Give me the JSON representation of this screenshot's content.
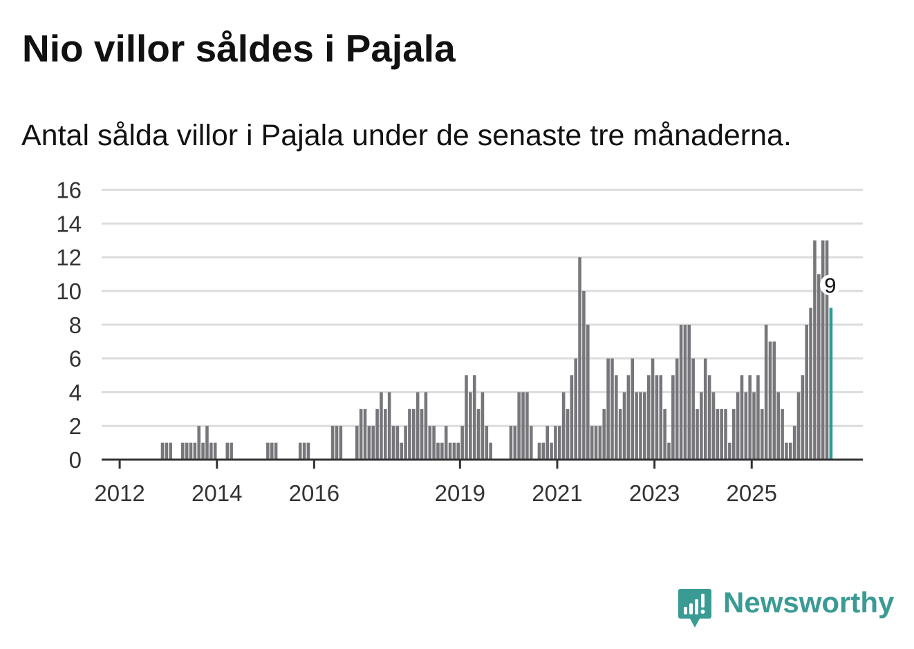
{
  "title": "Nio villor såldes i Pajala",
  "subtitle": "Antal sålda villor i Pajala under de senaste tre månaderna.",
  "brand": {
    "name": "Newsworthy",
    "icon": "newsworthy-logo-icon",
    "color": "#3a9b94"
  },
  "colors": {
    "bar": "#77767a",
    "highlight": "#2a9d96",
    "grid": "#dcdcdc",
    "axis": "#333333"
  },
  "chart_data": {
    "type": "bar",
    "title": "Nio villor såldes i Pajala",
    "xlabel": "",
    "ylabel": "",
    "ylim": [
      0,
      16
    ],
    "yticks": [
      0,
      2,
      4,
      6,
      8,
      10,
      12,
      14,
      16
    ],
    "x_start": {
      "year": 2011,
      "month": 10
    },
    "year_ticks": [
      {
        "label": "2012",
        "year": 2012
      },
      {
        "label": "2014",
        "year": 2014
      },
      {
        "label": "2016",
        "year": 2016
      },
      {
        "label": "2019",
        "year": 2019
      },
      {
        "label": "2021",
        "year": 2021
      },
      {
        "label": "2023",
        "year": 2023
      },
      {
        "label": "2025",
        "year": 2025
      }
    ],
    "values": [
      0,
      0,
      0,
      0,
      0,
      0,
      0,
      0,
      0,
      0,
      0,
      0,
      0,
      1,
      1,
      1,
      0,
      0,
      1,
      1,
      1,
      1,
      2,
      1,
      2,
      1,
      1,
      0,
      0,
      1,
      1,
      0,
      0,
      0,
      0,
      0,
      0,
      0,
      0,
      1,
      1,
      1,
      0,
      0,
      0,
      0,
      0,
      1,
      1,
      1,
      0,
      0,
      0,
      0,
      0,
      2,
      2,
      2,
      0,
      0,
      0,
      2,
      3,
      3,
      2,
      2,
      3,
      4,
      3,
      4,
      2,
      2,
      1,
      2,
      3,
      3,
      4,
      3,
      4,
      2,
      2,
      1,
      1,
      2,
      1,
      1,
      1,
      2,
      5,
      4,
      5,
      3,
      4,
      2,
      1,
      0,
      0,
      0,
      0,
      2,
      2,
      4,
      4,
      4,
      2,
      0,
      1,
      1,
      2,
      1,
      2,
      2,
      4,
      3,
      5,
      6,
      12,
      10,
      8,
      2,
      2,
      2,
      3,
      6,
      6,
      5,
      3,
      4,
      5,
      6,
      4,
      4,
      4,
      5,
      6,
      5,
      5,
      3,
      1,
      5,
      6,
      8,
      8,
      8,
      6,
      3,
      4,
      6,
      5,
      4,
      3,
      3,
      3,
      1,
      3,
      4,
      5,
      4,
      5,
      4,
      5,
      3,
      8,
      7,
      7,
      4,
      3,
      1,
      1,
      2,
      4,
      5,
      8,
      9,
      13,
      11,
      13,
      13,
      9
    ],
    "highlight_label": "9"
  }
}
